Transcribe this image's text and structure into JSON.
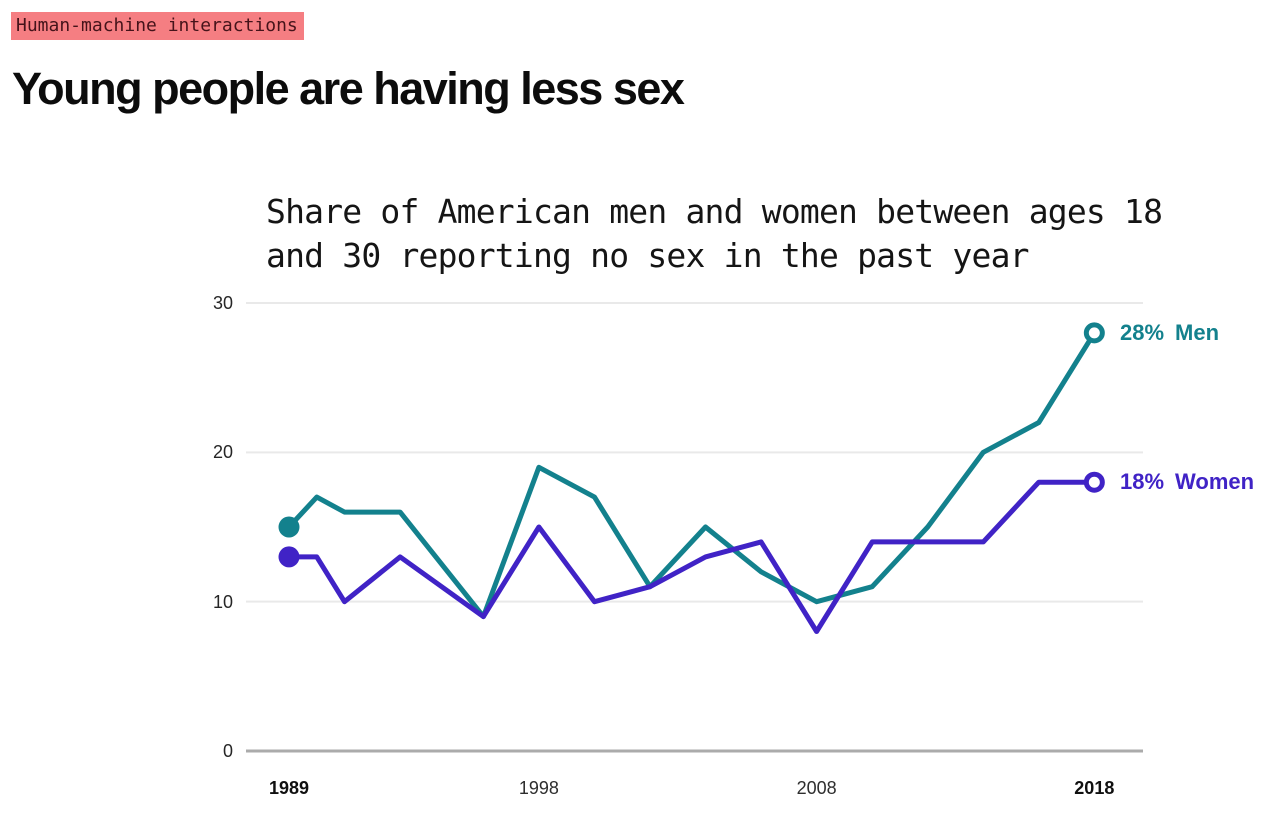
{
  "page": {
    "tag": "Human-machine interactions",
    "title": "Young people are having less sex"
  },
  "style": {
    "tag_bg": "#F57E82",
    "tag_text": "#45131A",
    "men_color": "#13818D",
    "women_color": "#4023C6",
    "grid_color": "#E9E9E9",
    "axis_color": "#ABABAB"
  },
  "chart_data": {
    "type": "line",
    "title": "Share of American men and women between ages 18 and 30 reporting no sex in the past year",
    "xlabel": "",
    "ylabel": "",
    "x_range": [
      1989,
      2018
    ],
    "ylim": [
      0,
      30
    ],
    "grid": true,
    "legend_position": "line-end labels",
    "y_ticks": [
      30,
      20,
      10,
      0
    ],
    "x_ticks": [
      {
        "label": "1989",
        "year": 1989,
        "bold": true
      },
      {
        "label": "1998",
        "year": 1998,
        "bold": false
      },
      {
        "label": "2008",
        "year": 2008,
        "bold": false
      },
      {
        "label": "2018",
        "year": 2018,
        "bold": true
      }
    ],
    "years": [
      1989,
      1990,
      1991,
      1993,
      1996,
      1998,
      2000,
      2002,
      2004,
      2006,
      2008,
      2010,
      2012,
      2014,
      2016,
      2018
    ],
    "series": [
      {
        "name": "Men",
        "color": "#13818D",
        "end_label_value": "28%",
        "end_label_name": "Men",
        "start_marker": "filled-dot",
        "end_marker": "open-circle",
        "values": [
          15,
          17,
          16,
          16,
          9,
          19,
          17,
          11,
          15,
          12,
          10,
          11,
          15,
          20,
          22,
          28
        ]
      },
      {
        "name": "Women",
        "color": "#4023C6",
        "end_label_value": "18%",
        "end_label_name": "Women",
        "start_marker": "filled-dot",
        "end_marker": "open-circle",
        "values": [
          13,
          13,
          10,
          13,
          9,
          15,
          10,
          11,
          13,
          14,
          8,
          14,
          14,
          14,
          18,
          18
        ]
      }
    ]
  }
}
